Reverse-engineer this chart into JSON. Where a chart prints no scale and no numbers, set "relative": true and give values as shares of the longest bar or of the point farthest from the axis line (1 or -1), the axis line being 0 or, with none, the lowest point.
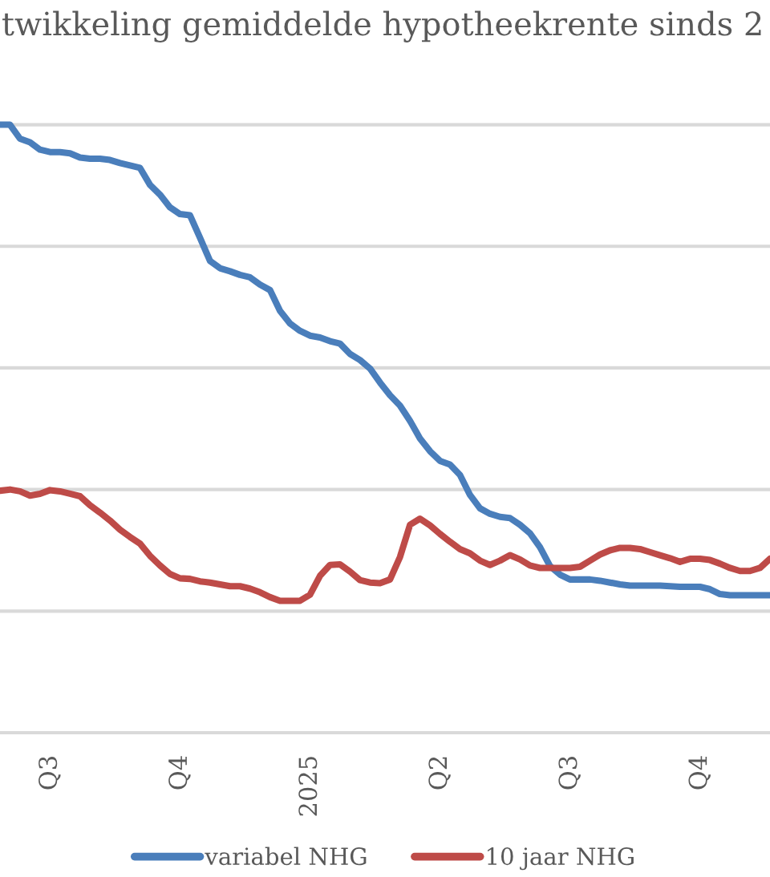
{
  "chart_data": {
    "type": "line",
    "title": "twikkeling gemiddelde hypotheekrente sinds 2",
    "categories": [
      null,
      null,
      null,
      null,
      null,
      "Q3",
      null,
      null,
      null,
      null,
      null,
      null,
      null,
      null,
      null,
      null,
      null,
      null,
      "Q4",
      null,
      null,
      null,
      null,
      null,
      null,
      null,
      null,
      null,
      null,
      null,
      null,
      "2025",
      null,
      null,
      null,
      null,
      null,
      null,
      null,
      null,
      null,
      null,
      null,
      null,
      "Q2",
      null,
      null,
      null,
      null,
      null,
      null,
      null,
      null,
      null,
      null,
      null,
      null,
      "Q3",
      null,
      null,
      null,
      null,
      null,
      null,
      null,
      null,
      null,
      null,
      null,
      null,
      "Q4",
      null,
      null,
      null,
      null,
      null,
      null,
      null
    ],
    "relative": true,
    "grid": "y",
    "legend": "bottom",
    "line_style": "solid",
    "series": [
      {
        "name": "variabel NHG",
        "color": "#4a7ebb",
        "values": [
          1.0,
          1.0,
          0.977,
          0.971,
          0.959,
          0.955,
          0.955,
          0.953,
          0.946,
          0.944,
          0.944,
          0.942,
          0.937,
          0.933,
          0.929,
          0.901,
          0.885,
          0.864,
          0.853,
          0.851,
          0.814,
          0.776,
          0.764,
          0.759,
          0.753,
          0.749,
          0.737,
          0.728,
          0.694,
          0.673,
          0.661,
          0.653,
          0.65,
          0.644,
          0.64,
          0.623,
          0.613,
          0.599,
          0.576,
          0.555,
          0.538,
          0.513,
          0.484,
          0.463,
          0.447,
          0.441,
          0.424,
          0.391,
          0.369,
          0.36,
          0.355,
          0.353,
          0.342,
          0.328,
          0.305,
          0.274,
          0.26,
          0.252,
          0.252,
          0.252,
          0.25,
          0.247,
          0.244,
          0.242,
          0.242,
          0.242,
          0.242,
          0.241,
          0.24,
          0.24,
          0.24,
          0.236,
          0.228,
          0.226,
          0.226,
          0.226,
          0.226,
          0.226
        ]
      },
      {
        "name": "10 jaar NHG",
        "color": "#be4b48",
        "values": [
          0.398,
          0.4,
          0.397,
          0.39,
          0.393,
          0.399,
          0.397,
          0.393,
          0.389,
          0.374,
          0.362,
          0.349,
          0.334,
          0.322,
          0.311,
          0.291,
          0.275,
          0.261,
          0.254,
          0.253,
          0.249,
          0.247,
          0.244,
          0.241,
          0.241,
          0.237,
          0.231,
          0.223,
          0.217,
          0.217,
          0.217,
          0.227,
          0.258,
          0.276,
          0.277,
          0.265,
          0.251,
          0.247,
          0.246,
          0.252,
          0.289,
          0.342,
          0.352,
          0.341,
          0.327,
          0.314,
          0.302,
          0.295,
          0.283,
          0.276,
          0.283,
          0.292,
          0.285,
          0.275,
          0.271,
          0.271,
          0.271,
          0.271,
          0.273,
          0.283,
          0.293,
          0.3,
          0.304,
          0.304,
          0.302,
          0.297,
          0.292,
          0.287,
          0.281,
          0.286,
          0.286,
          0.284,
          0.278,
          0.271,
          0.266,
          0.266,
          0.271,
          0.286
        ]
      }
    ]
  }
}
